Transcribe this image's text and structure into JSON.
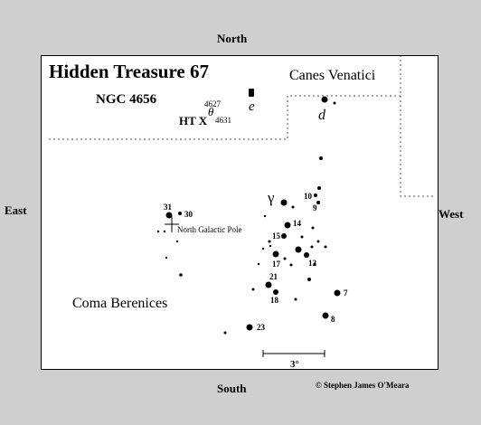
{
  "compass": {
    "north": "North",
    "south": "South",
    "east": "East",
    "west": "West"
  },
  "chart": {
    "title": "Hidden Treasure 67",
    "object_name": "NGC 4656",
    "asterism_label": "HT X",
    "theta_symbol": "θ",
    "ngc_label_a": "4627",
    "ngc_label_b": "4631",
    "region_canes": "Canes Venatici",
    "region_coma": "Coma Berenices",
    "pole_label": "North Galactic Pole",
    "scale_label": "3°",
    "copyright": "© Stephen James O'Meara"
  },
  "star_labels": {
    "e": "e",
    "d": "d",
    "gamma": "γ",
    "s31": "31",
    "s30": "30",
    "s10": "10",
    "s9": "9",
    "s14": "14",
    "s15": "15",
    "s17": "17",
    "s12": "12",
    "s21": "21",
    "s18": "18",
    "s7": "7",
    "s8": "8",
    "s23": "23"
  }
}
